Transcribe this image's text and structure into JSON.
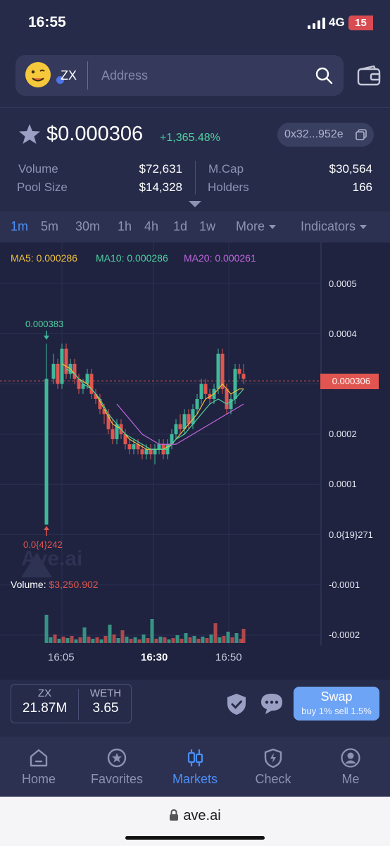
{
  "status": {
    "time": "16:55",
    "network": "4G",
    "battery": "15"
  },
  "search": {
    "token_symbol": "ZX",
    "placeholder": "Address"
  },
  "token": {
    "price": "$0.000306",
    "change": "+1,365.48%",
    "address": "0x32...952e"
  },
  "stats": {
    "volume_label": "Volume",
    "volume": "$72,631",
    "pool_label": "Pool Size",
    "pool": "$14,328",
    "mcap_label": "M.Cap",
    "mcap": "$30,564",
    "holders_label": "Holders",
    "holders": "166"
  },
  "timeframes": [
    "1m",
    "5m",
    "30m",
    "1h",
    "4h",
    "1d",
    "1w"
  ],
  "more_label": "More",
  "indicators_label": "Indicators",
  "chart": {
    "ma5": "MA5: 0.000286",
    "ma10": "MA10: 0.000286",
    "ma20": "MA20: 0.000261",
    "y_labels": [
      "0.0005",
      "0.0004",
      "0.0003",
      "0.0002",
      "0.0001",
      "0.0{19}271",
      "-0.0001",
      "-0.0002"
    ],
    "current_price_tag": "0.000306",
    "high_label": "0.000383",
    "low_label": "0.0{4}242",
    "volume_prefix": "Volume:",
    "volume_value": "$3,250.902",
    "x_labels": [
      "16:05",
      "16:30",
      "16:50"
    ],
    "watermark": "Ave.ai",
    "colors": {
      "up": "#3fb99a",
      "down": "#e0554f",
      "ma5": "#f0c23c",
      "ma10": "#4fd1a0",
      "ma20": "#c266e0"
    }
  },
  "chart_data": {
    "type": "candlestick",
    "x": [
      "16:05",
      "16:30",
      "16:50"
    ],
    "ylim": [
      -0.0002,
      0.0005
    ],
    "current_price": 0.000306,
    "high": 0.000383,
    "series": [
      {
        "name": "MA5",
        "last": 0.000286
      },
      {
        "name": "MA10",
        "last": 0.000286
      },
      {
        "name": "MA20",
        "last": 0.000261
      }
    ],
    "volume": 3250.902
  },
  "balances": {
    "token_sym": "ZX",
    "token_amount": "21.87M",
    "base_sym": "WETH",
    "base_amount": "3.65"
  },
  "swap": {
    "title": "Swap",
    "subtitle": "buy 1% sell 1.5%"
  },
  "nav": [
    {
      "label": "Home",
      "icon": "home-icon"
    },
    {
      "label": "Favorites",
      "icon": "star-icon"
    },
    {
      "label": "Markets",
      "icon": "candles-icon"
    },
    {
      "label": "Check",
      "icon": "bolt-shield-icon"
    },
    {
      "label": "Me",
      "icon": "user-icon"
    }
  ],
  "browser": {
    "url": "ave.ai"
  }
}
